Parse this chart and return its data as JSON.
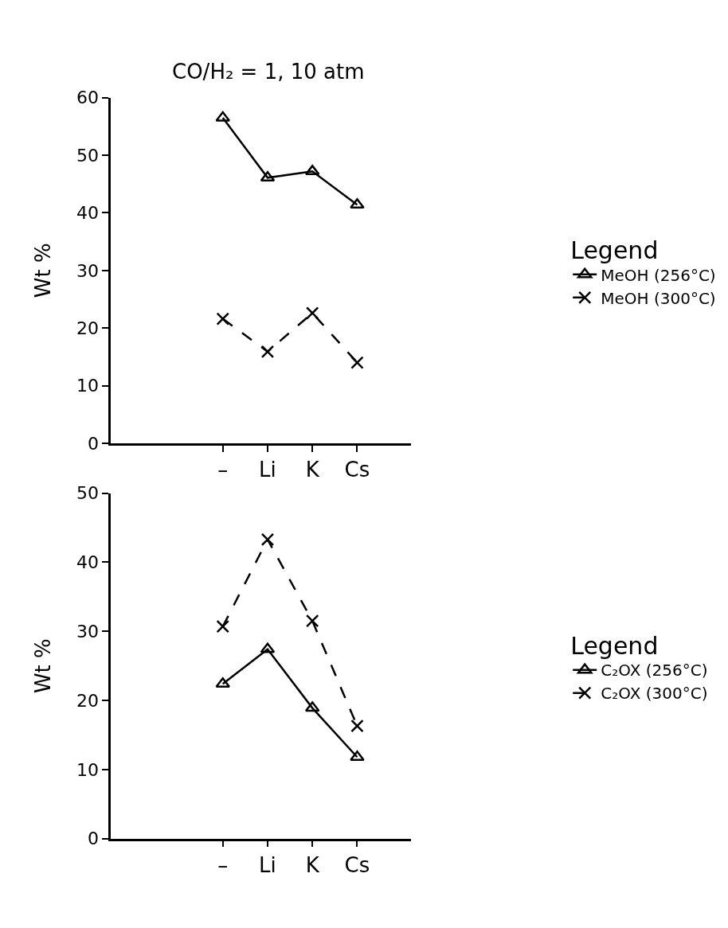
{
  "chart_data": [
    {
      "type": "line",
      "title": "CO/H₂ = 1, 10 atm",
      "ylabel": "Wt %",
      "legend_title": "Legend",
      "legend": "right",
      "categories": [
        "–",
        "Li",
        "K",
        "Cs"
      ],
      "ylim": [
        0,
        60
      ],
      "yticks": [
        0,
        10,
        20,
        30,
        40,
        50,
        60
      ],
      "series": [
        {
          "name": "MeOH (256°C)",
          "color": "#000000",
          "marker": "triangle",
          "line_style": "solid",
          "values": [
            56.5,
            46.1,
            47.2,
            41.4
          ]
        },
        {
          "name": "MeOH (300°C)",
          "color": "#000000",
          "marker": "cross",
          "line_style": "dashed",
          "values": [
            21.6,
            15.9,
            22.6,
            14.0
          ]
        }
      ]
    },
    {
      "type": "line",
      "ylabel": "Wt %",
      "legend_title": "Legend",
      "legend": "right",
      "categories": [
        "–",
        "Li",
        "K",
        "Cs"
      ],
      "ylim": [
        0,
        50
      ],
      "yticks": [
        0,
        10,
        20,
        30,
        40,
        50
      ],
      "series": [
        {
          "name": "C₂OX (256°C)",
          "color": "#000000",
          "marker": "triangle",
          "line_style": "solid",
          "values": [
            22.4,
            27.4,
            18.9,
            11.8
          ]
        },
        {
          "name": "C₂OX (300°C)",
          "color": "#000000",
          "marker": "cross",
          "line_style": "dashed",
          "values": [
            30.7,
            43.3,
            31.5,
            16.3
          ]
        }
      ]
    }
  ]
}
